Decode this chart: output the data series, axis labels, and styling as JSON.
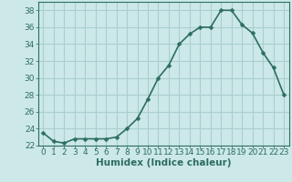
{
  "x": [
    0,
    1,
    2,
    3,
    4,
    5,
    6,
    7,
    8,
    9,
    10,
    11,
    12,
    13,
    14,
    15,
    16,
    17,
    18,
    19,
    20,
    21,
    22,
    23
  ],
  "y": [
    23.5,
    22.5,
    22.3,
    22.8,
    22.8,
    22.8,
    22.8,
    23.0,
    24.0,
    25.2,
    27.5,
    30.0,
    31.5,
    34.0,
    35.2,
    36.0,
    36.0,
    38.0,
    38.0,
    36.3,
    35.3,
    33.0,
    31.2,
    28.0
  ],
  "line_color": "#2d6e5e",
  "marker": "D",
  "marker_size": 2.5,
  "bg_color": "#cce8e8",
  "grid_color": "#aacfcf",
  "xlabel": "Humidex (Indice chaleur)",
  "ylim": [
    22,
    39
  ],
  "xlim": [
    -0.5,
    23.5
  ],
  "yticks": [
    22,
    24,
    26,
    28,
    30,
    32,
    34,
    36,
    38
  ],
  "xticks": [
    0,
    1,
    2,
    3,
    4,
    5,
    6,
    7,
    8,
    9,
    10,
    11,
    12,
    13,
    14,
    15,
    16,
    17,
    18,
    19,
    20,
    21,
    22,
    23
  ],
  "xlabel_fontsize": 7.5,
  "tick_fontsize": 6.5,
  "line_width": 1.2
}
